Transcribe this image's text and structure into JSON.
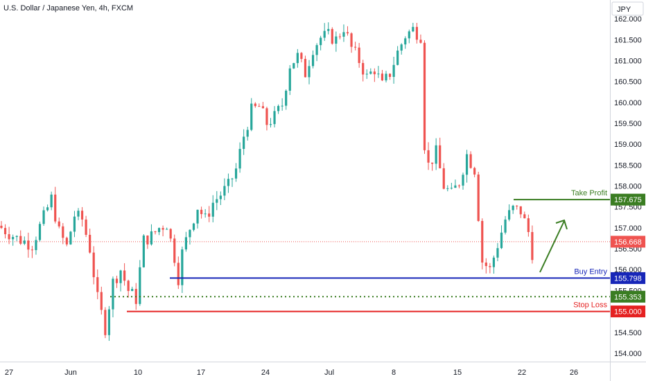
{
  "header": {
    "symbol_title": "U.S. Dollar / Japanese Yen, 4h, FXCM"
  },
  "currency_button": "JPY",
  "colors": {
    "up": "#26a69a",
    "down": "#ef5350",
    "take_profit": "#3a7d22",
    "buy_entry": "#1726b8",
    "stop_loss": "#e52222",
    "support": "#3a7d22",
    "current_price": "#ef5350"
  },
  "chart_data": {
    "type": "candlestick",
    "title": "U.S. Dollar / Japanese Yen, 4h, FXCM",
    "ylim": [
      153.8,
      162.45
    ],
    "y_ticks": [
      "162.000",
      "161.500",
      "161.000",
      "160.500",
      "160.000",
      "159.500",
      "159.000",
      "158.500",
      "158.000",
      "157.500",
      "157.000",
      "156.500",
      "156.000",
      "155.500",
      "155.000",
      "154.500",
      "154.000"
    ],
    "x_ticks": [
      "27",
      "Jun",
      "10",
      "17",
      "24",
      "Jul",
      "8",
      "15",
      "22",
      "26"
    ],
    "price_path": [
      [
        0,
        157.0
      ],
      [
        4,
        156.75
      ],
      [
        8,
        156.6
      ],
      [
        11,
        157.25
      ],
      [
        13,
        157.7
      ],
      [
        15,
        156.9
      ],
      [
        17,
        156.55
      ],
      [
        19,
        157.3
      ],
      [
        21,
        157.2
      ],
      [
        23,
        156.5
      ],
      [
        25,
        155.3
      ],
      [
        27,
        154.6
      ],
      [
        29,
        155.7
      ],
      [
        31,
        156.0
      ],
      [
        33,
        155.5
      ],
      [
        35,
        155.3
      ],
      [
        37,
        156.7
      ],
      [
        39,
        156.8
      ],
      [
        41,
        157.0
      ],
      [
        43,
        157.1
      ],
      [
        45,
        156.3
      ],
      [
        46,
        155.8
      ],
      [
        47,
        156.4
      ],
      [
        49,
        157.0
      ],
      [
        51,
        157.5
      ],
      [
        53,
        157.2
      ],
      [
        55,
        157.6
      ],
      [
        57,
        157.8
      ],
      [
        59,
        158.0
      ],
      [
        61,
        158.4
      ],
      [
        63,
        159.2
      ],
      [
        65,
        159.8
      ],
      [
        67,
        159.9
      ],
      [
        69,
        159.5
      ],
      [
        71,
        159.65
      ],
      [
        73,
        159.95
      ],
      [
        75,
        160.9
      ],
      [
        77,
        161.1
      ],
      [
        79,
        160.7
      ],
      [
        81,
        161.3
      ],
      [
        83,
        161.55
      ],
      [
        85,
        161.6
      ],
      [
        87,
        161.5
      ],
      [
        89,
        161.8
      ],
      [
        91,
        161.3
      ],
      [
        93,
        161.0
      ],
      [
        95,
        160.6
      ],
      [
        97,
        160.8
      ],
      [
        99,
        160.4
      ],
      [
        101,
        160.7
      ],
      [
        103,
        161.2
      ],
      [
        105,
        161.6
      ],
      [
        107,
        161.75
      ],
      [
        109,
        161.6
      ],
      [
        110,
        159.0
      ],
      [
        111,
        158.5
      ],
      [
        113,
        158.8
      ],
      [
        115,
        158.0
      ],
      [
        117,
        157.8
      ],
      [
        119,
        158.1
      ],
      [
        121,
        158.75
      ],
      [
        123,
        158.4
      ],
      [
        125,
        156.2
      ],
      [
        127,
        156.0
      ],
      [
        129,
        156.6
      ],
      [
        131,
        157.2
      ],
      [
        133,
        157.45
      ],
      [
        135,
        157.4
      ],
      [
        137,
        156.9
      ],
      [
        138,
        156.4
      ]
    ],
    "candle_count": 139,
    "annotations": {
      "take_profit": {
        "label": "Take Profit",
        "price": 157.675,
        "price_label": "157.675"
      },
      "buy_entry": {
        "label": "Buy Entry",
        "price": 155.798,
        "price_label": "155.798"
      },
      "stop_loss": {
        "label": "Stop Loss",
        "price": 155.0,
        "price_label": "155.000"
      },
      "support": {
        "price": 155.353,
        "price_label": "155.353"
      },
      "current_price": {
        "price": 156.668,
        "price_label": "156.668"
      }
    },
    "grid": false,
    "legend": "none"
  }
}
